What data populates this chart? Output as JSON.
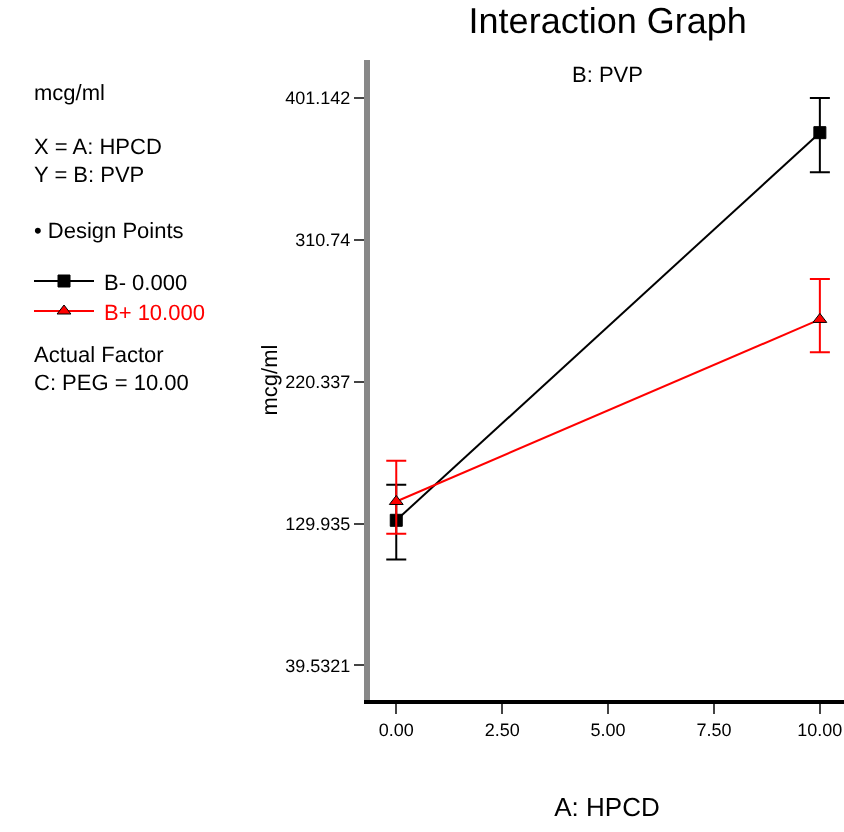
{
  "chart_data": {
    "type": "line",
    "title": "Interaction Graph",
    "subtitle": "B: PVP",
    "xlabel": "A: HPCD",
    "ylabel": "mcg/ml",
    "x": [
      0,
      10
    ],
    "series": [
      {
        "name": "B- 0.000",
        "color": "#000000",
        "marker": "square",
        "values": [
          132,
          379
        ],
        "errors": [
          [
            107,
            154.6
          ],
          [
            353.7,
            401.1
          ]
        ]
      },
      {
        "name": "B+ 10.000",
        "color": "#ff0000",
        "marker": "triangle",
        "values": [
          144,
          260
        ],
        "errors": [
          [
            123.4,
            169.9
          ],
          [
            239.1,
            285.8
          ]
        ]
      }
    ],
    "xlim": [
      -0.62,
      10.57
    ],
    "xticks": [
      {
        "value": 0,
        "label": "0.00"
      },
      {
        "value": 2.5,
        "label": "2.50"
      },
      {
        "value": 5,
        "label": "5.00"
      },
      {
        "value": 7.5,
        "label": "7.50"
      },
      {
        "value": 10,
        "label": "10.00"
      }
    ],
    "ylim": [
      17.5,
      425.3
    ],
    "yticks": [
      39.5321,
      129.935,
      {
        "value": 220.337,
        "label": "220.337"
      },
      310.74,
      401.142
    ],
    "grid": false,
    "legend": "left",
    "line_style": "solid",
    "annotations": [
      "mcg/ml",
      "X = A: HPCD",
      "Y = B: PVP",
      "• Design Points",
      "Actual Factor",
      "C: PEG = 10.00"
    ]
  }
}
